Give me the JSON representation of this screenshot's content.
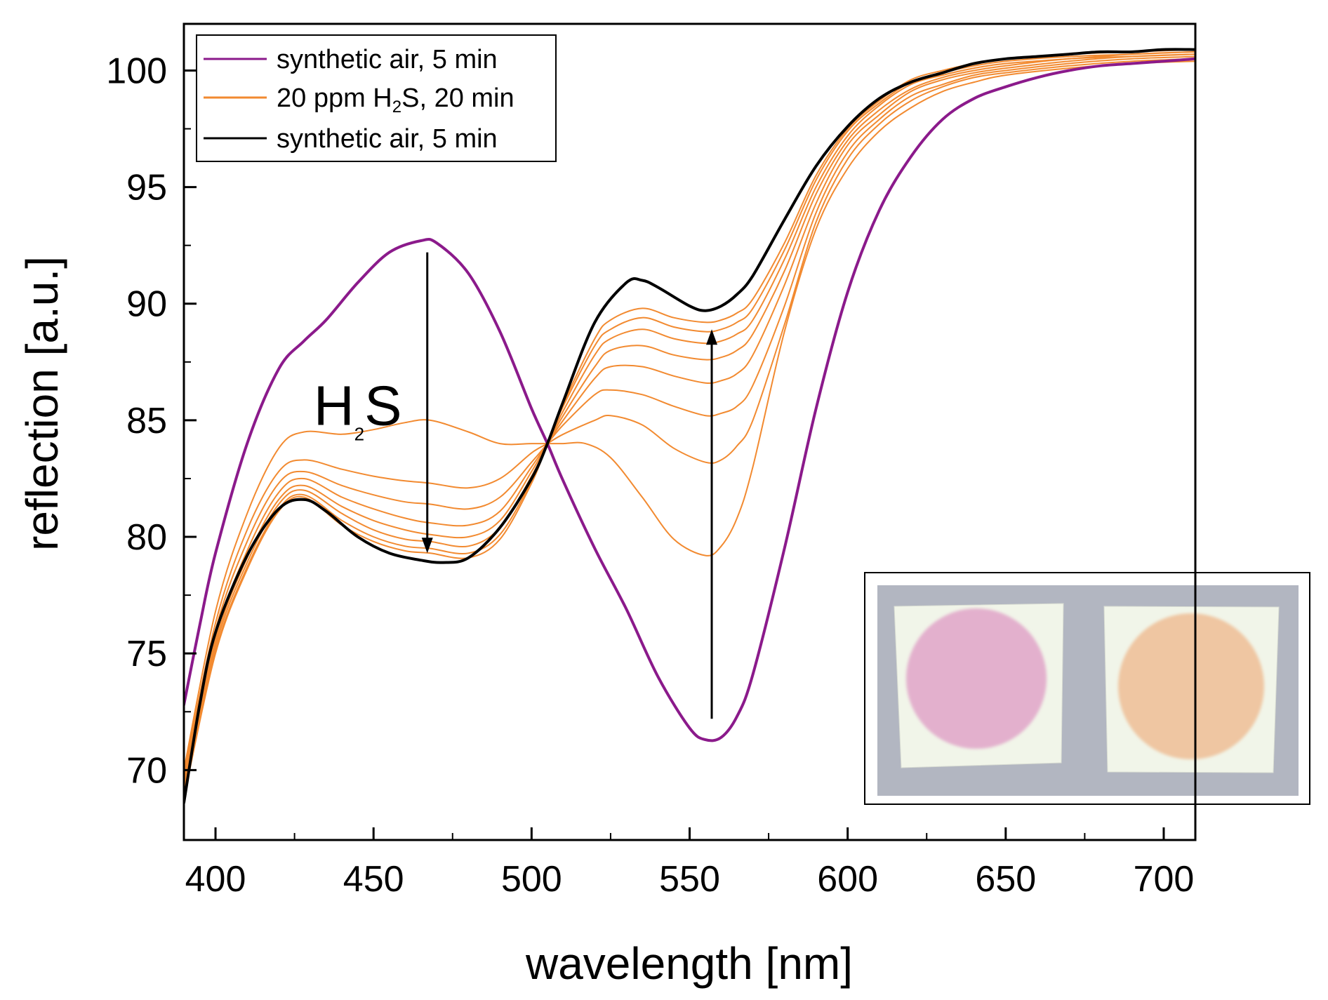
{
  "chart_data": {
    "type": "line",
    "title": "",
    "xlabel": "wavelength [nm]",
    "ylabel": "reflection [a.u.]",
    "xlim": [
      390,
      710
    ],
    "ylim": [
      67,
      102
    ],
    "xticks": [
      400,
      450,
      500,
      550,
      600,
      650,
      700
    ],
    "xtick_labels": [
      "400",
      "450",
      "500",
      "550",
      "600",
      "650",
      "700"
    ],
    "yticks": [
      70,
      75,
      80,
      85,
      90,
      95,
      100
    ],
    "ytick_labels": [
      "70",
      "75",
      "80",
      "85",
      "90",
      "95",
      "100"
    ],
    "grid": false,
    "legend": {
      "position": "top-left",
      "entries": [
        {
          "text": "synthetic air, 5 min",
          "color": "#8B1A8B"
        },
        {
          "pre": "20 ppm H",
          "sub": "2",
          "post": "S, 20 min",
          "color": "#F28A30"
        },
        {
          "text": "synthetic air, 5 min",
          "color": "#000000"
        }
      ]
    },
    "annotations": [
      {
        "label_main": "H",
        "label_sub": "2",
        "label_tail": "S",
        "text_x": 445,
        "text_y": 84.8
      },
      {
        "type": "arrow",
        "x": 467,
        "y_from": 92.2,
        "y_to": 79.3,
        "direction": "down"
      },
      {
        "type": "arrow",
        "x": 557,
        "y_from": 72.2,
        "y_to": 88.9,
        "direction": "up"
      }
    ],
    "series": [
      {
        "name": "synthetic air, 5 min (initial)",
        "color": "#8B1A8B",
        "width": 4,
        "x": [
          390,
          395,
          400,
          410,
          420,
          428,
          435,
          445,
          455,
          465,
          470,
          480,
          490,
          500,
          505,
          510,
          520,
          530,
          540,
          550,
          555,
          560,
          565,
          570,
          580,
          590,
          600,
          610,
          620,
          630,
          640,
          650,
          660,
          670,
          680,
          690,
          700,
          710
        ],
        "y": [
          72.8,
          76.2,
          79.3,
          84.0,
          87.2,
          88.4,
          89.3,
          90.9,
          92.2,
          92.7,
          92.6,
          91.3,
          88.8,
          85.5,
          84.0,
          82.4,
          79.5,
          76.9,
          74.0,
          71.8,
          71.3,
          71.4,
          72.3,
          74.1,
          79.5,
          85.5,
          90.5,
          94.0,
          96.3,
          97.9,
          98.8,
          99.3,
          99.7,
          100.0,
          100.2,
          100.3,
          100.4,
          100.5
        ]
      },
      {
        "name": "20 ppm H2S, 20 min (t1)",
        "color": "#F28A30",
        "width": 2,
        "x": [
          390,
          400,
          410,
          420,
          428,
          440,
          450,
          460,
          468,
          480,
          490,
          500,
          505,
          510,
          517,
          525,
          535,
          545,
          555,
          560,
          565,
          570,
          580,
          590,
          600,
          610,
          620,
          630,
          640,
          650,
          670,
          690,
          710
        ],
        "y": [
          70.0,
          76.8,
          81.0,
          83.8,
          84.5,
          84.4,
          84.6,
          84.9,
          85.0,
          84.5,
          84.0,
          84.0,
          84.0,
          84.0,
          84.0,
          83.4,
          81.7,
          79.9,
          79.2,
          79.6,
          80.8,
          83.0,
          88.8,
          93.2,
          95.8,
          97.4,
          98.4,
          99.1,
          99.5,
          99.8,
          100.1,
          100.3,
          100.4
        ]
      },
      {
        "name": "20 ppm H2S, 20 min (t2)",
        "color": "#F28A30",
        "width": 2,
        "x": [
          390,
          400,
          410,
          420,
          428,
          440,
          450,
          460,
          468,
          480,
          490,
          500,
          505,
          510,
          520,
          525,
          535,
          545,
          555,
          560,
          565,
          570,
          580,
          590,
          600,
          610,
          620,
          630,
          640,
          650,
          670,
          690,
          710
        ],
        "y": [
          69.8,
          76.3,
          80.3,
          82.8,
          83.3,
          82.9,
          82.6,
          82.4,
          82.3,
          82.1,
          82.5,
          83.6,
          84.0,
          84.4,
          85.0,
          85.2,
          84.8,
          83.8,
          83.2,
          83.3,
          83.9,
          85.0,
          89.1,
          93.5,
          96.2,
          97.7,
          98.7,
          99.3,
          99.7,
          99.9,
          100.2,
          100.4,
          100.5
        ]
      },
      {
        "name": "20 ppm H2S, 20 min (t3)",
        "color": "#F28A30",
        "width": 2,
        "x": [
          390,
          400,
          410,
          420,
          428,
          440,
          450,
          460,
          468,
          480,
          490,
          500,
          505,
          510,
          520,
          525,
          535,
          545,
          555,
          560,
          565,
          570,
          580,
          590,
          600,
          610,
          620,
          630,
          640,
          650,
          670,
          690,
          710
        ],
        "y": [
          69.6,
          76.0,
          79.8,
          82.3,
          82.8,
          82.2,
          81.8,
          81.5,
          81.4,
          81.2,
          81.7,
          83.2,
          84.0,
          84.8,
          86.1,
          86.3,
          86.1,
          85.6,
          85.2,
          85.3,
          85.6,
          86.5,
          89.9,
          93.9,
          96.5,
          97.9,
          98.9,
          99.4,
          99.8,
          100.0,
          100.3,
          100.5,
          100.6
        ]
      },
      {
        "name": "20 ppm H2S, 20 min (t4)",
        "color": "#F28A30",
        "width": 2,
        "x": [
          390,
          400,
          410,
          420,
          428,
          440,
          450,
          460,
          468,
          480,
          490,
          500,
          505,
          510,
          520,
          525,
          535,
          545,
          555,
          560,
          565,
          570,
          580,
          590,
          600,
          610,
          620,
          630,
          640,
          650,
          670,
          690,
          710
        ],
        "y": [
          69.4,
          75.7,
          79.4,
          81.9,
          82.5,
          81.7,
          81.2,
          80.8,
          80.6,
          80.5,
          81.1,
          83.0,
          84.0,
          85.0,
          86.8,
          87.3,
          87.3,
          86.9,
          86.6,
          86.7,
          87.0,
          87.8,
          90.8,
          94.3,
          96.8,
          98.1,
          99.1,
          99.6,
          99.9,
          100.1,
          100.4,
          100.6,
          100.7
        ]
      },
      {
        "name": "20 ppm H2S, 20 min (t5)",
        "color": "#F28A30",
        "width": 2,
        "x": [
          390,
          400,
          410,
          420,
          428,
          440,
          450,
          460,
          468,
          480,
          490,
          500,
          505,
          510,
          520,
          525,
          535,
          545,
          555,
          560,
          565,
          570,
          580,
          590,
          600,
          610,
          620,
          630,
          640,
          650,
          670,
          690,
          710
        ],
        "y": [
          69.2,
          75.5,
          79.1,
          81.6,
          82.2,
          81.3,
          80.7,
          80.3,
          80.1,
          80.0,
          80.7,
          82.8,
          84.0,
          85.2,
          87.3,
          88.0,
          88.2,
          87.8,
          87.6,
          87.7,
          88.0,
          88.7,
          91.4,
          94.7,
          97.0,
          98.3,
          99.2,
          99.7,
          100.0,
          100.2,
          100.5,
          100.6,
          100.7
        ]
      },
      {
        "name": "20 ppm H2S, 20 min (t6)",
        "color": "#F28A30",
        "width": 2,
        "x": [
          390,
          400,
          410,
          420,
          428,
          440,
          450,
          460,
          468,
          480,
          490,
          500,
          505,
          510,
          520,
          525,
          535,
          545,
          555,
          560,
          565,
          570,
          580,
          590,
          600,
          610,
          620,
          630,
          640,
          650,
          670,
          690,
          710
        ],
        "y": [
          69.0,
          75.3,
          78.9,
          81.4,
          82.0,
          81.0,
          80.3,
          79.9,
          79.8,
          79.6,
          80.4,
          82.6,
          84.0,
          85.4,
          87.8,
          88.5,
          88.9,
          88.5,
          88.3,
          88.4,
          88.7,
          89.3,
          91.9,
          95.0,
          97.2,
          98.5,
          99.4,
          99.8,
          100.1,
          100.3,
          100.5,
          100.7,
          100.8
        ]
      },
      {
        "name": "20 ppm H2S, 20 min (t7)",
        "color": "#F28A30",
        "width": 2,
        "x": [
          390,
          400,
          410,
          420,
          428,
          440,
          450,
          460,
          468,
          480,
          490,
          500,
          505,
          510,
          520,
          525,
          535,
          545,
          555,
          560,
          565,
          570,
          580,
          590,
          600,
          610,
          620,
          630,
          640,
          650,
          670,
          690,
          710
        ],
        "y": [
          68.9,
          75.1,
          78.7,
          81.2,
          81.8,
          80.7,
          80.0,
          79.6,
          79.5,
          79.3,
          80.1,
          82.4,
          84.0,
          85.6,
          88.2,
          88.9,
          89.4,
          89.0,
          88.8,
          88.9,
          89.2,
          89.8,
          92.3,
          95.3,
          97.4,
          98.6,
          99.5,
          99.9,
          100.2,
          100.4,
          100.6,
          100.7,
          100.8
        ]
      },
      {
        "name": "20 ppm H2S, 20 min (t8)",
        "color": "#F28A30",
        "width": 2,
        "x": [
          390,
          400,
          410,
          420,
          428,
          440,
          450,
          460,
          468,
          480,
          490,
          500,
          505,
          510,
          520,
          525,
          535,
          545,
          555,
          560,
          565,
          570,
          580,
          590,
          600,
          610,
          620,
          630,
          640,
          650,
          670,
          690,
          710
        ],
        "y": [
          68.8,
          75.0,
          78.6,
          81.1,
          81.7,
          80.5,
          79.8,
          79.4,
          79.3,
          79.1,
          79.9,
          82.3,
          84.0,
          85.7,
          88.5,
          89.3,
          89.8,
          89.4,
          89.2,
          89.3,
          89.6,
          90.2,
          92.6,
          95.5,
          97.5,
          98.7,
          99.6,
          100.0,
          100.3,
          100.5,
          100.7,
          100.8,
          100.9
        ]
      },
      {
        "name": "synthetic air, 5 min (recovery)",
        "color": "#000000",
        "width": 4,
        "x": [
          390,
          395,
          400,
          410,
          420,
          428,
          435,
          445,
          455,
          465,
          472,
          480,
          490,
          500,
          505,
          510,
          520,
          530,
          535,
          540,
          550,
          555,
          560,
          565,
          570,
          580,
          590,
          600,
          610,
          620,
          630,
          640,
          650,
          660,
          670,
          680,
          690,
          700,
          710
        ],
        "y": [
          68.6,
          72.8,
          75.9,
          79.2,
          81.2,
          81.6,
          81.1,
          80.0,
          79.3,
          79.0,
          78.9,
          79.1,
          80.4,
          82.5,
          84.0,
          85.8,
          89.2,
          90.9,
          91.0,
          90.7,
          89.9,
          89.7,
          89.9,
          90.4,
          91.2,
          93.6,
          95.9,
          97.6,
          98.8,
          99.5,
          99.9,
          100.3,
          100.5,
          100.6,
          100.7,
          100.8,
          100.8,
          100.9,
          100.9
        ]
      }
    ]
  }
}
